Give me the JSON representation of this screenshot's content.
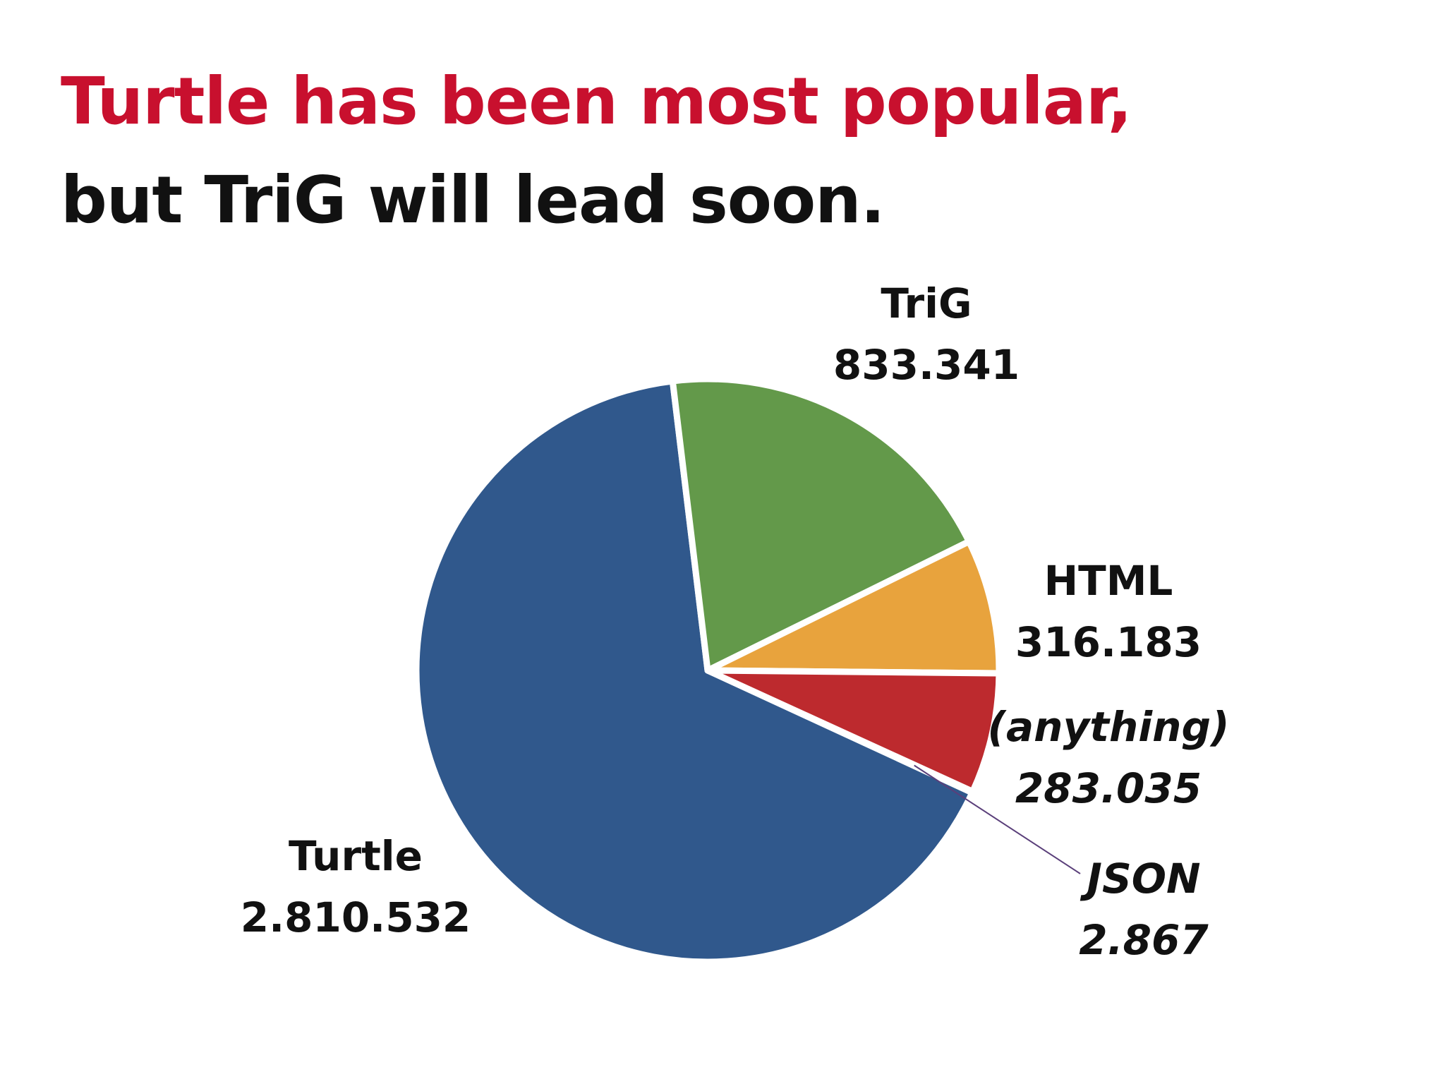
{
  "title": {
    "line1": "Turtle has been most popular,",
    "line2": "but TriG will lead soon."
  },
  "colors": {
    "title_accent": "#c8102e",
    "title_main": "#111111",
    "separator": "#ffffff",
    "leader_line": "#5a3f7a"
  },
  "chart_data": {
    "type": "pie",
    "title": "Turtle has been most popular, but TriG will lead soon.",
    "slices": [
      {
        "label": "Turtle",
        "display_value": "2.810.532",
        "value": 2810532,
        "color": "#30588c",
        "italic": false
      },
      {
        "label": "TriG",
        "display_value": "833.341",
        "value": 833341,
        "color": "#63994a",
        "italic": false
      },
      {
        "label": "HTML",
        "display_value": "316.183",
        "value": 316183,
        "color": "#e8a33d",
        "italic": false
      },
      {
        "label": "(anything)",
        "display_value": "283.035",
        "value": 283035,
        "color": "#bd2a2e",
        "italic": true
      },
      {
        "label": "JSON",
        "display_value": "2.867",
        "value": 2867,
        "color": "#30588c",
        "italic": true
      }
    ],
    "legend": "none"
  }
}
